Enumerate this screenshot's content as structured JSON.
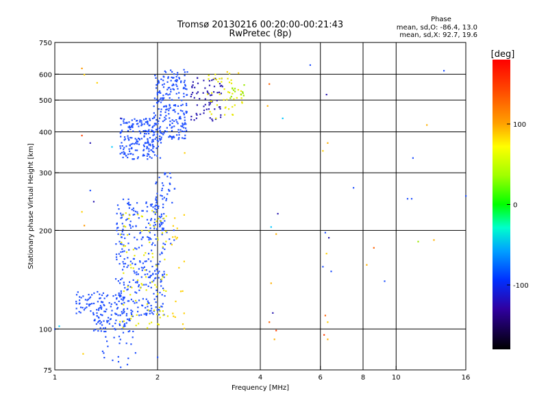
{
  "chart_data": {
    "type": "scatter",
    "title": "Tromsø 20130216 00:20:00-00:21:43",
    "subtitle": "RwPretec (8p)",
    "xlabel": "Frequency [MHz]",
    "ylabel": "Stationary phase Virtual Height [km]",
    "x_scale": "log",
    "y_scale": "log",
    "xlim": [
      1,
      16
    ],
    "ylim": [
      75,
      750
    ],
    "x_ticks": [
      1,
      2,
      4,
      6,
      8,
      10,
      16
    ],
    "x_tick_labels": [
      "1",
      "2",
      "4",
      "6",
      "8",
      "10",
      "16"
    ],
    "x_gridlines": [
      2,
      4,
      6,
      8,
      10
    ],
    "y_ticks": [
      75,
      100,
      200,
      300,
      400,
      500,
      600,
      750
    ],
    "y_tick_labels": [
      "75",
      "100",
      "200",
      "300",
      "400",
      "500",
      "600",
      "750"
    ],
    "y_gridlines": [
      100,
      200,
      300,
      400,
      500,
      600
    ],
    "grid": true,
    "stats": {
      "heading": "Phase",
      "line_o": "mean, sd,O: -86.4, 13.0",
      "line_x": "mean, sd,X:  92.7, 19.6"
    },
    "colorbar": {
      "label": "[deg]",
      "range": [
        -180,
        180
      ],
      "ticks": [
        100,
        0,
        -100
      ],
      "tick_labels": [
        "100",
        "0",
        "-100"
      ]
    },
    "colors": {
      "o_mode": "#1f4fff",
      "x_mode": "#e8e800",
      "o_mode_dark": "#2a1ab0",
      "x_mode_green": "#9be800",
      "noise_red": "#ff4000",
      "noise_orange": "#ff9900"
    },
    "clusters": [
      {
        "mode": "O",
        "color": "#1f4fff",
        "count": 200,
        "x_range": [
          1.55,
          2.05
        ],
        "y_range": [
          330,
          440
        ]
      },
      {
        "mode": "O",
        "color": "#1f4fff",
        "count": 220,
        "x_range": [
          1.95,
          2.45
        ],
        "y_range": [
          380,
          620
        ]
      },
      {
        "mode": "O",
        "color": "#2a1ab0",
        "count": 70,
        "x_range": [
          2.5,
          3.1
        ],
        "y_range": [
          430,
          590
        ]
      },
      {
        "mode": "X",
        "color": "#e8e800",
        "count": 45,
        "x_range": [
          2.8,
          3.6
        ],
        "y_range": [
          440,
          610
        ]
      },
      {
        "mode": "X",
        "color": "#9be800",
        "count": 12,
        "x_range": [
          3.2,
          3.6
        ],
        "y_range": [
          500,
          560
        ]
      },
      {
        "mode": "O",
        "color": "#1f4fff",
        "count": 320,
        "x_range": [
          1.5,
          2.1
        ],
        "y_range": [
          110,
          250
        ]
      },
      {
        "mode": "O",
        "color": "#1f4fff",
        "count": 90,
        "x_range": [
          1.15,
          1.6
        ],
        "y_range": [
          110,
          130
        ]
      },
      {
        "mode": "O",
        "color": "#1f4fff",
        "count": 60,
        "x_range": [
          1.3,
          1.7
        ],
        "y_range": [
          97,
          112
        ]
      },
      {
        "mode": "O",
        "color": "#1f4fff",
        "count": 50,
        "x_range": [
          1.95,
          2.25
        ],
        "y_range": [
          180,
          300
        ]
      },
      {
        "mode": "X",
        "color": "#e8e800",
        "count": 90,
        "x_range": [
          1.55,
          2.15
        ],
        "y_range": [
          100,
          230
        ]
      },
      {
        "mode": "X",
        "color": "#ffd000",
        "count": 20,
        "x_range": [
          2.2,
          2.4
        ],
        "y_range": [
          100,
          225
        ]
      },
      {
        "mode": "O",
        "color": "#1f4fff",
        "count": 20,
        "x_range": [
          1.35,
          1.75
        ],
        "y_range": [
          75,
          95
        ]
      }
    ],
    "points": [
      {
        "x": 5.6,
        "y": 640,
        "color": "#1f4fff"
      },
      {
        "x": 4.25,
        "y": 560,
        "color": "#ff6000"
      },
      {
        "x": 6.25,
        "y": 520,
        "color": "#2a1ab0"
      },
      {
        "x": 4.2,
        "y": 480,
        "color": "#ffb000"
      },
      {
        "x": 4.65,
        "y": 440,
        "color": "#00c8ff"
      },
      {
        "x": 6.3,
        "y": 370,
        "color": "#ffb000"
      },
      {
        "x": 6.1,
        "y": 350,
        "color": "#ffd000"
      },
      {
        "x": 7.5,
        "y": 270,
        "color": "#1f4fff"
      },
      {
        "x": 4.5,
        "y": 225,
        "color": "#2a1ab0"
      },
      {
        "x": 4.3,
        "y": 205,
        "color": "#00c8ff"
      },
      {
        "x": 4.45,
        "y": 195,
        "color": "#ffb000"
      },
      {
        "x": 6.2,
        "y": 197,
        "color": "#1f4fff"
      },
      {
        "x": 6.35,
        "y": 190,
        "color": "#2a1ab0"
      },
      {
        "x": 6.25,
        "y": 170,
        "color": "#ffd000"
      },
      {
        "x": 6.1,
        "y": 155,
        "color": "#1f4fff"
      },
      {
        "x": 6.45,
        "y": 150,
        "color": "#1f4fff"
      },
      {
        "x": 8.6,
        "y": 177,
        "color": "#ff6000"
      },
      {
        "x": 8.2,
        "y": 157,
        "color": "#ffb000"
      },
      {
        "x": 9.25,
        "y": 140,
        "color": "#1f4fff"
      },
      {
        "x": 4.3,
        "y": 138,
        "color": "#ffb000"
      },
      {
        "x": 4.35,
        "y": 112,
        "color": "#2a1ab0"
      },
      {
        "x": 4.25,
        "y": 105,
        "color": "#ff6000"
      },
      {
        "x": 4.45,
        "y": 99,
        "color": "#ff4000"
      },
      {
        "x": 4.4,
        "y": 93,
        "color": "#ffb000"
      },
      {
        "x": 6.2,
        "y": 110,
        "color": "#ff6000"
      },
      {
        "x": 6.3,
        "y": 105,
        "color": "#ffd000"
      },
      {
        "x": 6.15,
        "y": 96,
        "color": "#ff4000"
      },
      {
        "x": 6.3,
        "y": 93,
        "color": "#ffb000"
      },
      {
        "x": 11.2,
        "y": 333,
        "color": "#1f4fff"
      },
      {
        "x": 12.3,
        "y": 420,
        "color": "#ffb000"
      },
      {
        "x": 13.8,
        "y": 615,
        "color": "#1f4fff"
      },
      {
        "x": 10.8,
        "y": 250,
        "color": "#1f4fff"
      },
      {
        "x": 11.1,
        "y": 250,
        "color": "#1f4fff"
      },
      {
        "x": 11.6,
        "y": 185,
        "color": "#9be800"
      },
      {
        "x": 12.9,
        "y": 187,
        "color": "#ffb000"
      },
      {
        "x": 16.0,
        "y": 255,
        "color": "#1f4fff"
      },
      {
        "x": 1.2,
        "y": 625,
        "color": "#ff9900"
      },
      {
        "x": 1.22,
        "y": 598,
        "color": "#ffd000"
      },
      {
        "x": 1.33,
        "y": 565,
        "color": "#ffd000"
      },
      {
        "x": 1.2,
        "y": 390,
        "color": "#ff4000"
      },
      {
        "x": 1.27,
        "y": 370,
        "color": "#2a1ab0"
      },
      {
        "x": 1.2,
        "y": 228,
        "color": "#ffd000"
      },
      {
        "x": 1.22,
        "y": 207,
        "color": "#ff9900"
      },
      {
        "x": 1.27,
        "y": 265,
        "color": "#1f4fff"
      },
      {
        "x": 1.3,
        "y": 245,
        "color": "#2a1ab0"
      },
      {
        "x": 1.21,
        "y": 84,
        "color": "#ffd000"
      },
      {
        "x": 1.0,
        "y": 100,
        "color": "#1f4fff"
      },
      {
        "x": 1.03,
        "y": 102,
        "color": "#00c8ff"
      },
      {
        "x": 1.47,
        "y": 360,
        "color": "#00c8ff"
      },
      {
        "x": 1.56,
        "y": 440,
        "color": "#2a1ab0"
      },
      {
        "x": 3.2,
        "y": 610,
        "color": "#ffd000"
      },
      {
        "x": 3.45,
        "y": 605,
        "color": "#ffd000"
      },
      {
        "x": 2.4,
        "y": 345,
        "color": "#ffd000"
      },
      {
        "x": 2.0,
        "y": 82,
        "color": "#1f4fff"
      }
    ]
  }
}
